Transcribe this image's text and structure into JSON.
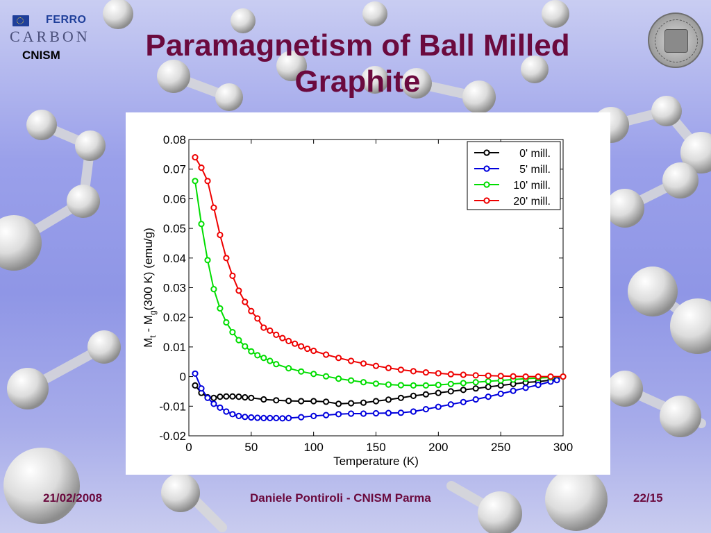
{
  "header": {
    "logo_ferro": "FERRO",
    "logo_carbon": "CARBON",
    "logo_cnism": "CNISM",
    "title_line1": "Paramagnetism of Ball Milled",
    "title_line2": "Graphite"
  },
  "footer": {
    "date": "21/02/2008",
    "author": "Daniele Pontiroli - CNISM Parma",
    "page": "22/15"
  },
  "colors": {
    "title": "#6b0a3e",
    "background": "#9aa0ea"
  },
  "icons": [
    "eu-flag-icon",
    "university-seal-icon",
    "molecule-background"
  ],
  "chart_data": {
    "type": "line",
    "xlabel": "Temperature (K)",
    "ylabel_parts": [
      "M",
      "t",
      " - M",
      "g",
      "(300 K) (emu/g)"
    ],
    "xlim": [
      0,
      300
    ],
    "ylim": [
      -0.02,
      0.08
    ],
    "xticks": [
      0,
      50,
      100,
      150,
      200,
      250,
      300
    ],
    "yticks": [
      -0.02,
      -0.01,
      0,
      0.01,
      0.02,
      0.03,
      0.04,
      0.05,
      0.06,
      0.07,
      0.08
    ],
    "xtick_labels": [
      "0",
      "50",
      "100",
      "150",
      "200",
      "250",
      "300"
    ],
    "ytick_labels": [
      "-0.02",
      "-0.01",
      "0",
      "0.01",
      "0.02",
      "0.03",
      "0.04",
      "0.05",
      "0.06",
      "0.07",
      "0.08"
    ],
    "grid": false,
    "legend_position": "top-right",
    "marker": "open-circle",
    "series": [
      {
        "name": "0' mill.",
        "color": "#000000",
        "x": [
          5,
          10,
          15,
          20,
          25,
          30,
          35,
          40,
          45,
          50,
          60,
          70,
          80,
          90,
          100,
          110,
          120,
          130,
          140,
          150,
          160,
          170,
          180,
          190,
          200,
          210,
          220,
          230,
          240,
          250,
          260,
          270,
          280,
          290,
          295
        ],
        "y": [
          -0.003,
          -0.0055,
          -0.007,
          -0.0072,
          -0.0068,
          -0.0067,
          -0.0067,
          -0.0068,
          -0.007,
          -0.0072,
          -0.0077,
          -0.008,
          -0.0082,
          -0.0083,
          -0.0083,
          -0.0085,
          -0.0092,
          -0.009,
          -0.0088,
          -0.0083,
          -0.0078,
          -0.0072,
          -0.0065,
          -0.006,
          -0.0055,
          -0.005,
          -0.0045,
          -0.004,
          -0.0035,
          -0.003,
          -0.0025,
          -0.002,
          -0.0017,
          -0.0012,
          -0.001
        ]
      },
      {
        "name": "5' mill.",
        "color": "#0000dd",
        "x": [
          5,
          10,
          15,
          20,
          25,
          30,
          35,
          40,
          45,
          50,
          55,
          60,
          65,
          70,
          75,
          80,
          90,
          100,
          110,
          120,
          130,
          140,
          150,
          160,
          170,
          180,
          190,
          200,
          210,
          220,
          230,
          240,
          250,
          260,
          270,
          280,
          290,
          295
        ],
        "y": [
          0.001,
          -0.004,
          -0.0072,
          -0.0092,
          -0.0105,
          -0.0118,
          -0.0127,
          -0.0133,
          -0.0136,
          -0.0138,
          -0.0139,
          -0.014,
          -0.014,
          -0.014,
          -0.0141,
          -0.014,
          -0.0137,
          -0.0133,
          -0.013,
          -0.0127,
          -0.0125,
          -0.0125,
          -0.0124,
          -0.0123,
          -0.0122,
          -0.0118,
          -0.011,
          -0.0102,
          -0.0094,
          -0.0086,
          -0.0077,
          -0.0068,
          -0.0058,
          -0.0048,
          -0.0038,
          -0.0028,
          -0.0017,
          -0.0012
        ]
      },
      {
        "name": "10' mill.",
        "color": "#00dd00",
        "x": [
          5,
          10,
          15,
          20,
          25,
          30,
          35,
          40,
          45,
          50,
          55,
          60,
          65,
          70,
          80,
          90,
          100,
          110,
          120,
          130,
          140,
          150,
          160,
          170,
          180,
          190,
          200,
          210,
          220,
          230,
          240,
          250,
          260,
          270,
          280,
          290,
          300
        ],
        "y": [
          0.066,
          0.0515,
          0.0393,
          0.0295,
          0.023,
          0.0183,
          0.015,
          0.0123,
          0.0102,
          0.0085,
          0.0072,
          0.0063,
          0.0053,
          0.0042,
          0.0028,
          0.0017,
          0.0009,
          0.0001,
          -0.0007,
          -0.0013,
          -0.0019,
          -0.0024,
          -0.0027,
          -0.0029,
          -0.003,
          -0.003,
          -0.0028,
          -0.0025,
          -0.0022,
          -0.0019,
          -0.0016,
          -0.0013,
          -0.001,
          -0.0007,
          -0.0005,
          -0.0003,
          0.0
        ]
      },
      {
        "name": "20' mill.",
        "color": "#ee0000",
        "x": [
          5,
          10,
          15,
          20,
          25,
          30,
          35,
          40,
          45,
          50,
          55,
          60,
          65,
          70,
          75,
          80,
          85,
          90,
          95,
          100,
          110,
          120,
          130,
          140,
          150,
          160,
          170,
          180,
          190,
          200,
          210,
          220,
          230,
          240,
          250,
          260,
          270,
          280,
          290,
          300
        ],
        "y": [
          0.074,
          0.0705,
          0.066,
          0.057,
          0.0478,
          0.04,
          0.034,
          0.029,
          0.0252,
          0.0221,
          0.0196,
          0.0165,
          0.0155,
          0.0141,
          0.013,
          0.012,
          0.0111,
          0.0102,
          0.0094,
          0.0087,
          0.0074,
          0.0063,
          0.0053,
          0.0044,
          0.0036,
          0.0029,
          0.0023,
          0.0018,
          0.0014,
          0.0011,
          0.0008,
          0.0006,
          0.0004,
          0.0003,
          0.0002,
          0.0001,
          0.0,
          0.0,
          0.0,
          0.0
        ]
      }
    ]
  }
}
